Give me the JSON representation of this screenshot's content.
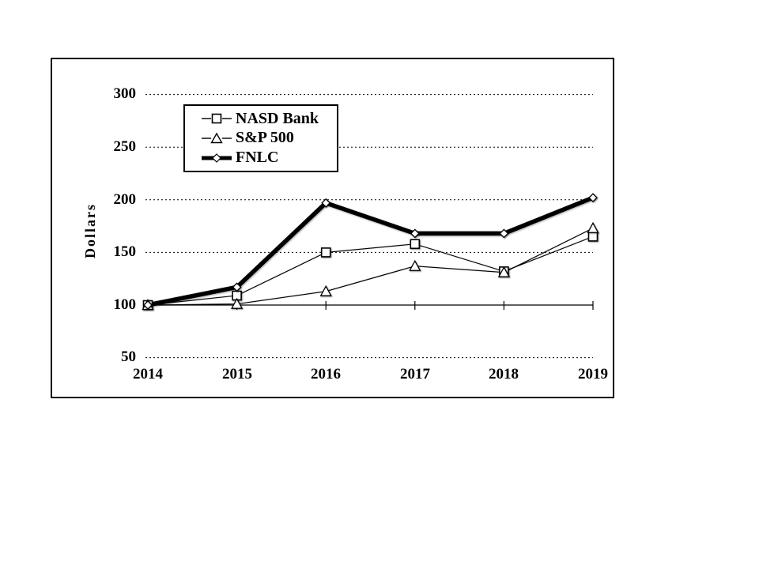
{
  "chart_data": {
    "type": "line",
    "title": "",
    "ylabel": "Dollars",
    "xlabel": "",
    "categories": [
      "2014",
      "2015",
      "2016",
      "2017",
      "2018",
      "2019"
    ],
    "yticks": [
      300,
      250,
      200,
      150,
      100,
      50
    ],
    "ylim": [
      50,
      300
    ],
    "axis_crosses_at": 100,
    "grid": "dashed-horizontal",
    "legend_position": "upper-left-inside",
    "series": [
      {
        "name": "NASD Bank",
        "marker": "square",
        "line": "thin",
        "values": [
          100,
          109,
          150,
          158,
          132,
          165
        ]
      },
      {
        "name": "S&P 500",
        "marker": "triangle",
        "line": "thin",
        "values": [
          100,
          101,
          113,
          137,
          131,
          173
        ]
      },
      {
        "name": "FNLC",
        "marker": "diamond",
        "line": "thick",
        "values": [
          100,
          117,
          197,
          168,
          168,
          202
        ]
      }
    ],
    "colors": {
      "line": "#000000",
      "grid": "#000000",
      "marker_fill": "#ffffff",
      "frame_border": "#000000",
      "background": "#ffffff"
    }
  }
}
